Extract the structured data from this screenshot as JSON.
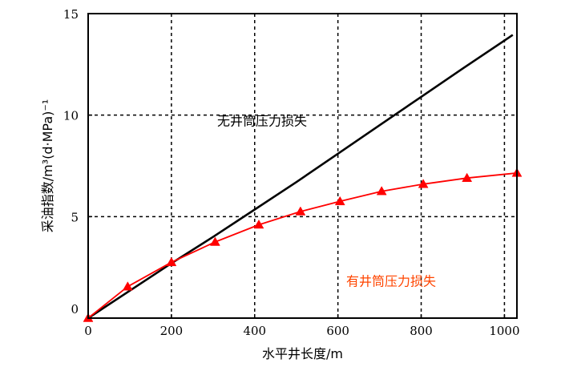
{
  "chart_data": {
    "type": "line",
    "title": "",
    "xlabel": "水平井长度/m",
    "ylabel": "采油指数/m³(d·MPa)⁻¹",
    "xlim": [
      0,
      1030
    ],
    "ylim": [
      0,
      15
    ],
    "xticks": [
      "0",
      "200",
      "400",
      "600",
      "800",
      "1000"
    ],
    "yticks": [
      "0",
      "5",
      "10",
      "15"
    ],
    "grid": "dashed at major ticks",
    "series": [
      {
        "name": "无井筒压力损失",
        "color": "#000000",
        "marker": "none",
        "x": [
          0,
          100,
          200,
          300,
          400,
          500,
          600,
          700,
          800,
          900,
          1020
        ],
        "y": [
          0,
          1.35,
          2.7,
          4.0,
          5.35,
          6.7,
          8.1,
          9.5,
          10.9,
          12.3,
          13.95
        ]
      },
      {
        "name": "有井筒压力损失",
        "color": "#ff0000",
        "marker": "triangle",
        "x": [
          0,
          95,
          200,
          305,
          410,
          510,
          605,
          705,
          805,
          910,
          1030
        ],
        "y": [
          0,
          1.55,
          2.75,
          3.75,
          4.6,
          5.25,
          5.75,
          6.25,
          6.6,
          6.9,
          7.15
        ]
      }
    ],
    "annotations": [
      {
        "text": "无井筒压力损失",
        "x": 310,
        "y": 9.5,
        "color": "#000000"
      },
      {
        "text": "有井筒压力损失",
        "x": 620,
        "y": 1.6,
        "color": "#ff4500"
      }
    ]
  }
}
